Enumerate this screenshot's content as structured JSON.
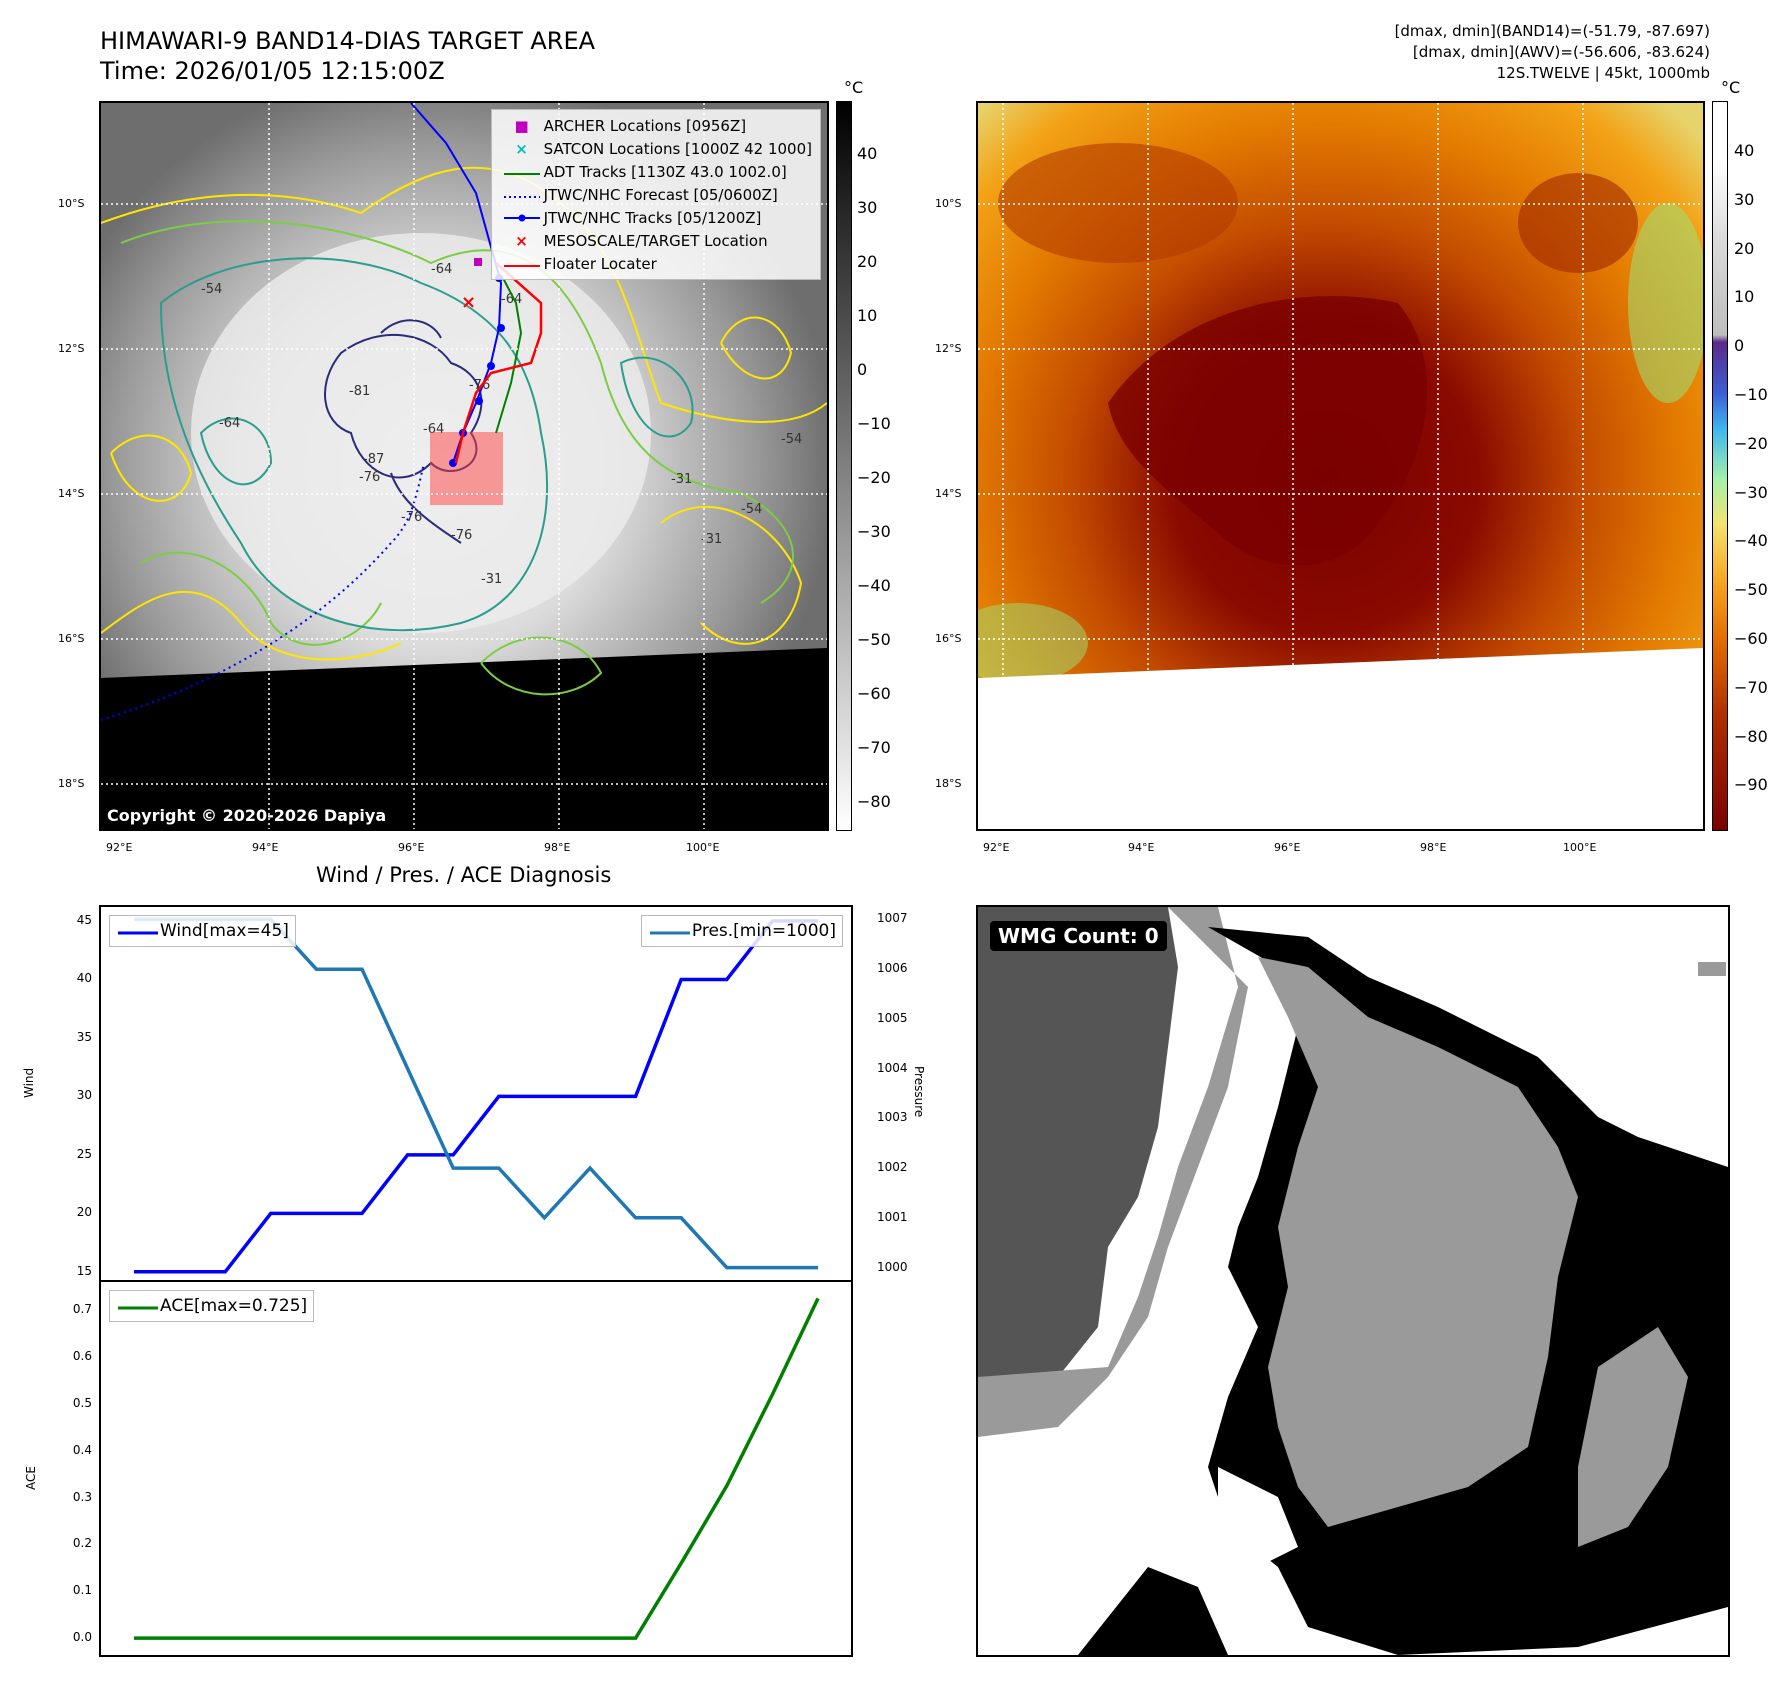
{
  "header": {
    "title": "HIMAWARI-9 BAND14-DIAS TARGET AREA",
    "time": "Time: 2026/01/05 12:15:00Z",
    "dmax_band14": "[dmax, dmin](BAND14)=(-51.79, -87.697)",
    "dmax_awv": "[dmax, dmin](AWV)=(-56.606, -83.624)",
    "storm": "12S.TWELVE | 45kt, 1000mb"
  },
  "map": {
    "lat_labels": [
      "10°S",
      "12°S",
      "14°S",
      "16°S",
      "18°S"
    ],
    "lon_labels": [
      "92°E",
      "94°E",
      "96°E",
      "98°E",
      "100°E"
    ],
    "copyright": "Copyright © 2020-2026 Dapiya",
    "contour_labels": [
      "-64",
      "-54",
      "-64",
      "-81",
      "-76",
      "-64",
      "-76",
      "-76",
      "-54",
      "-31",
      "-54",
      "-31",
      "-76",
      "-31",
      "-64",
      "-87"
    ]
  },
  "legend": {
    "items": [
      {
        "label": "ARCHER Locations [0956Z]",
        "marker": "square",
        "color": "#bf00bf"
      },
      {
        "label": "SATCON Locations [1000Z 42 1000]",
        "marker": "x",
        "color": "#00bfbf"
      },
      {
        "label": "ADT Tracks [1130Z 43.0 1002.0]",
        "marker": "line",
        "color": "#008000"
      },
      {
        "label": "JTWC/NHC Forecast [05/0600Z]",
        "marker": "dotted",
        "color": "#0000ff"
      },
      {
        "label": "JTWC/NHC Tracks [05/1200Z]",
        "marker": "line-dot",
        "color": "#0000ff"
      },
      {
        "label": "MESOSCALE/TARGET Location",
        "marker": "x",
        "color": "#ff0000"
      },
      {
        "label": "Floater Locater",
        "marker": "line",
        "color": "#ff0000"
      }
    ]
  },
  "colorbar_gray": {
    "unit": "°C",
    "ticks": [
      "40",
      "30",
      "20",
      "10",
      "0",
      "−10",
      "−20",
      "−30",
      "−40",
      "−50",
      "−60",
      "−70",
      "−80"
    ]
  },
  "colorbar_awv": {
    "unit": "°C",
    "ticks": [
      "40",
      "30",
      "20",
      "10",
      "0",
      "−10",
      "−20",
      "−30",
      "−40",
      "−50",
      "−60",
      "−70",
      "−80",
      "−90"
    ]
  },
  "chart_data": [
    {
      "type": "line",
      "title": "Wind / Pres. / ACE Diagnosis",
      "ylabel": "Wind",
      "y2label": "Pressure",
      "x": [
        0,
        1,
        2,
        3,
        4,
        5,
        6,
        7,
        8,
        9,
        10,
        11,
        12,
        13,
        14,
        15
      ],
      "series": [
        {
          "name": "Wind[max=45]",
          "axis": "left",
          "color": "#0000ff",
          "values": [
            15,
            15,
            15,
            20,
            20,
            20,
            25,
            25,
            30,
            30,
            30,
            30,
            40,
            40,
            45,
            45
          ]
        },
        {
          "name": "Pres.[min=1000]",
          "axis": "right",
          "color": "#1f77b4",
          "values": [
            1007,
            1007,
            1007,
            1007,
            1006,
            1006,
            1004,
            1002,
            1002,
            1001,
            1002,
            1001,
            1001,
            1000,
            1000,
            1000
          ]
        }
      ],
      "ylim": [
        14.3,
        46.2
      ],
      "y2lim": [
        999.75,
        1007.25
      ],
      "yticks": [
        "15",
        "20",
        "25",
        "30",
        "35",
        "40",
        "45"
      ],
      "y2ticks": [
        "1000",
        "1001",
        "1002",
        "1003",
        "1004",
        "1005",
        "1006",
        "1007"
      ]
    },
    {
      "type": "line",
      "ylabel": "ACE",
      "x": [
        0,
        1,
        2,
        3,
        4,
        5,
        6,
        7,
        8,
        9,
        10,
        11,
        12,
        13,
        14,
        15
      ],
      "series": [
        {
          "name": "ACE[max=0.725]",
          "color": "#008000",
          "values": [
            0,
            0,
            0,
            0,
            0,
            0,
            0,
            0,
            0,
            0,
            0,
            0,
            0.16,
            0.325,
            0.52,
            0.725
          ]
        }
      ],
      "ylim": [
        -0.036,
        0.76
      ],
      "yticks": [
        "0.0",
        "0.1",
        "0.2",
        "0.3",
        "0.4",
        "0.5",
        "0.6",
        "0.7"
      ]
    }
  ],
  "wmg": {
    "label": "WMG Count: 0"
  }
}
